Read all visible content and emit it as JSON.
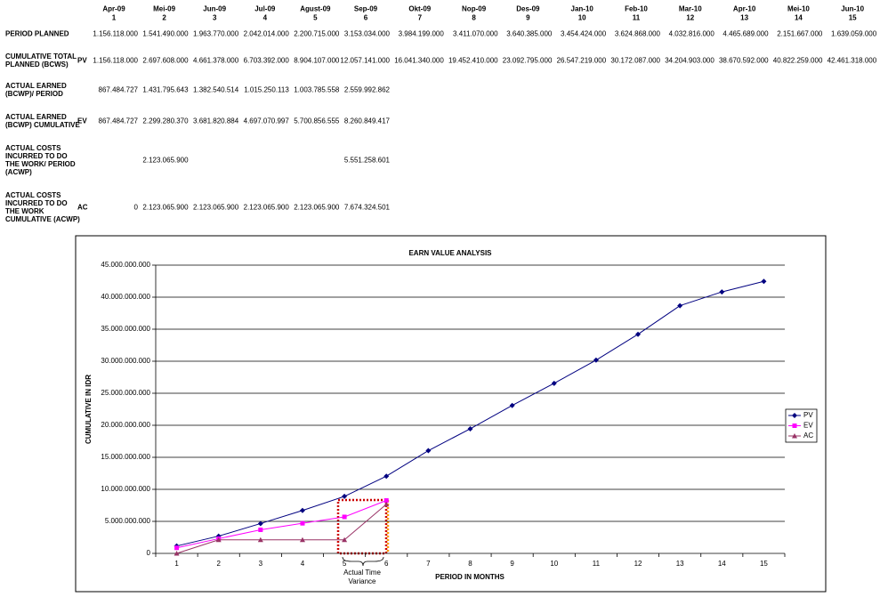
{
  "table": {
    "months": [
      "Apr-09",
      "Mei-09",
      "Jun-09",
      "Jul-09",
      "Agust-09",
      "Sep-09",
      "Okt-09",
      "Nop-09",
      "Des-09",
      "Jan-10",
      "Feb-10",
      "Mar-10",
      "Apr-10",
      "Mei-10",
      "Jun-10"
    ],
    "periods": [
      "1",
      "2",
      "3",
      "4",
      "5",
      "6",
      "7",
      "8",
      "9",
      "10",
      "11",
      "12",
      "13",
      "14",
      "15"
    ],
    "rows": [
      {
        "label": "PERIOD PLANNED",
        "abbr": null,
        "cells": [
          "1.156.118.000",
          "1.541.490.000",
          "1.963.770.000",
          "2.042.014.000",
          "2.200.715.000",
          "3.153.034.000",
          "3.984.199.000",
          "3.411.070.000",
          "3.640.385.000",
          "3.454.424.000",
          "3.624.868.000",
          "4.032.816.000",
          "4.465.689.000",
          "2.151.667.000",
          "1.639.059.000"
        ]
      },
      {
        "label": "CUMULATIVE TOTAL PLANNED (BCWS)",
        "abbr": "PV",
        "cells": [
          "1.156.118.000",
          "2.697.608.000",
          "4.661.378.000",
          "6.703.392.000",
          "8.904.107.000",
          "12.057.141.000",
          "16.041.340.000",
          "19.452.410.000",
          "23.092.795.000",
          "26.547.219.000",
          "30.172.087.000",
          "34.204.903.000",
          "38.670.592.000",
          "40.822.259.000",
          "42.461.318.000"
        ]
      },
      {
        "label": "ACTUAL EARNED (BCWP)/ PERIOD",
        "abbr": null,
        "cells": [
          "867.484.727",
          "1.431.795.643",
          "1.382.540.514",
          "1.015.250.113",
          "1.003.785.558",
          "2.559.992.862",
          null,
          null,
          null,
          null,
          null,
          null,
          null,
          null,
          null
        ]
      },
      {
        "label": "ACTUAL EARNED (BCWP) CUMULATIVE",
        "abbr": "EV",
        "cells": [
          "867.484.727",
          "2.299.280.370",
          "3.681.820.884",
          "4.697.070.997",
          "5.700.856.555",
          "8.260.849.417",
          null,
          null,
          null,
          null,
          null,
          null,
          null,
          null,
          null
        ]
      },
      {
        "label": "ACTUAL COSTS INCURRED TO DO THE WORK/ PERIOD (ACWP)",
        "abbr": null,
        "cells": [
          null,
          "2.123.065.900",
          null,
          null,
          null,
          "5.551.258.601",
          null,
          null,
          null,
          null,
          null,
          null,
          null,
          null,
          null
        ]
      },
      {
        "label": "ACTUAL COSTS INCURRED TO DO THE WORK CUMULATIVE (ACWP)",
        "abbr": "AC",
        "cells": [
          "0",
          "2.123.065.900",
          "2.123.065.900",
          "2.123.065.900",
          "2.123.065.900",
          "7.674.324.501",
          null,
          null,
          null,
          null,
          null,
          null,
          null,
          null,
          null
        ]
      }
    ]
  },
  "chart_data": {
    "type": "line",
    "title": "EARN VALUE ANALYSIS",
    "x_label": "PERIOD IN MONTHS",
    "y_label": "CUMULATIVE IN IDR",
    "annotation": "Actual Time Variance",
    "categories": [
      "1",
      "2",
      "3",
      "4",
      "5",
      "6",
      "7",
      "8",
      "9",
      "10",
      "11",
      "12",
      "13",
      "14",
      "15"
    ],
    "series": [
      {
        "name": "PV",
        "color": "#000080",
        "marker": "diamond",
        "values": [
          1156118000,
          2697608000,
          4661378000,
          6703392000,
          8904107000,
          12057141000,
          16041340000,
          19452410000,
          23092795000,
          26547219000,
          30172087000,
          34204903000,
          38670592000,
          40822259000,
          42461318000
        ]
      },
      {
        "name": "EV",
        "color": "#ff00ff",
        "marker": "square",
        "values": [
          867484727,
          2299280370,
          3681820884,
          4697070997,
          5700856555,
          8260849417,
          null,
          null,
          null,
          null,
          null,
          null,
          null,
          null,
          null
        ]
      },
      {
        "name": "AC",
        "color": "#993366",
        "marker": "triangle",
        "values": [
          0,
          2123065900,
          2123065900,
          2123065900,
          2123065900,
          7674324501,
          null,
          null,
          null,
          null,
          null,
          null,
          null,
          null,
          null
        ]
      }
    ],
    "ylim": [
      0,
      45000000000
    ],
    "yticks": [
      0,
      {
        "value": 5000000000,
        "label": "5.000.000.000"
      },
      {
        "value": 10000000000,
        "label": "10.000.000.000"
      },
      {
        "value": 15000000000,
        "label": "15.000.000.000"
      },
      {
        "value": 20000000000,
        "label": "20.000.000.000"
      },
      {
        "value": 25000000000,
        "label": "25.000.000.000"
      },
      {
        "value": 30000000000,
        "label": "30.000.000.000"
      },
      {
        "value": 35000000000,
        "label": "35.000.000.000"
      },
      {
        "value": 40000000000,
        "label": "40.000.000.000"
      },
      {
        "value": 45000000000,
        "label": "45.000.000.000"
      }
    ],
    "grid": true,
    "legend": "right"
  }
}
